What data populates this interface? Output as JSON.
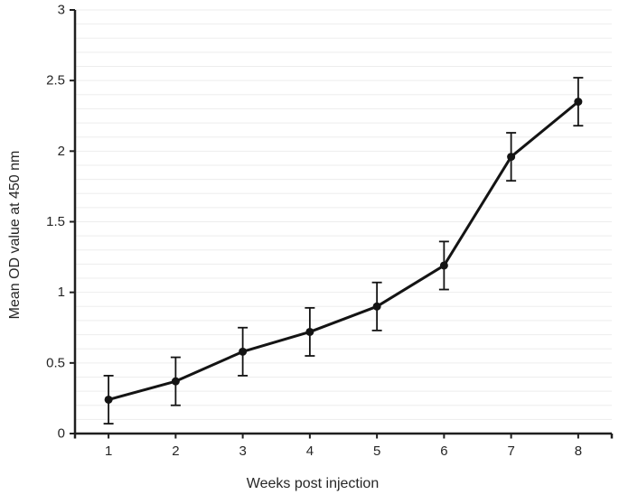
{
  "chart": {
    "background": "#ffffff",
    "line_color": "#141414",
    "marker_color": "#141414",
    "error_bar_color": "#141414",
    "grid_color": "#ededed",
    "axis_color": "#1f1f1f",
    "text_color": "#262626"
  },
  "chart_data": {
    "type": "line",
    "title": "",
    "xlabel": "Weeks post injection",
    "ylabel": "Mean OD value at 450 nm",
    "categories": [
      1,
      2,
      3,
      4,
      5,
      6,
      7,
      8
    ],
    "series": [
      {
        "name": "Mean OD value",
        "values": [
          0.24,
          0.37,
          0.58,
          0.72,
          0.9,
          1.19,
          1.96,
          2.35
        ],
        "errors": [
          0.17,
          0.17,
          0.17,
          0.17,
          0.17,
          0.17,
          0.17,
          0.17
        ]
      }
    ],
    "ylim": [
      0,
      3
    ],
    "ytick_step": 0.5,
    "minor_grid_step": 0.1,
    "grid": "horizontal-minor",
    "legend": "none",
    "error_bars": true,
    "marker": "circle"
  }
}
